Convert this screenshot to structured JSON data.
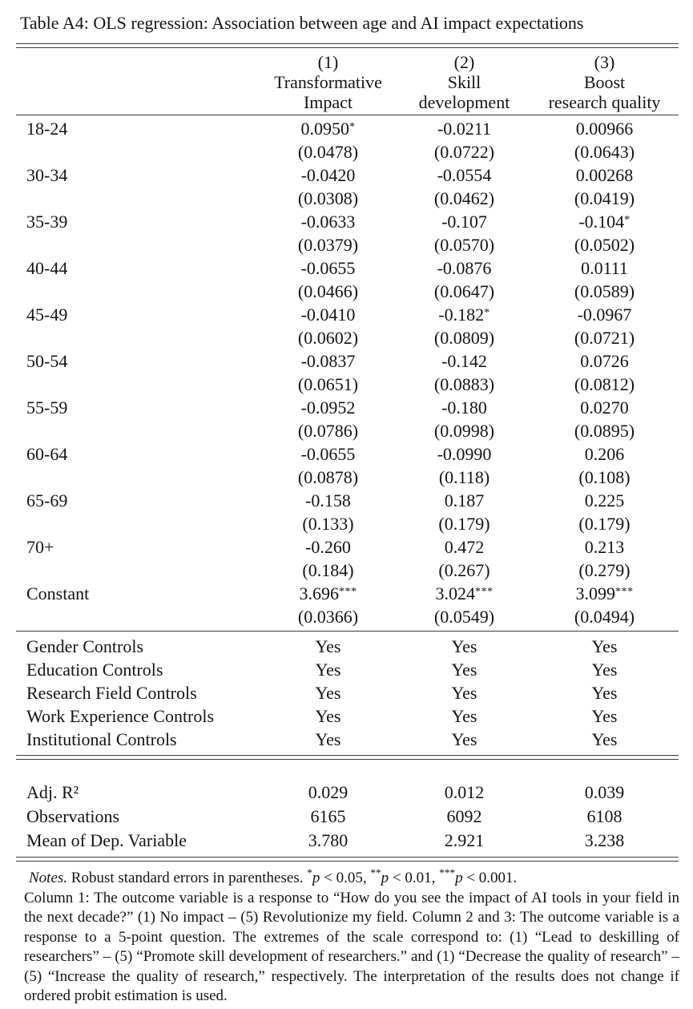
{
  "title": "Table A4: OLS regression: Association between age and AI impact expectations",
  "table": {
    "header": {
      "columns": [
        {
          "number": "(1)",
          "line1": "Transformative",
          "line2": "Impact"
        },
        {
          "number": "(2)",
          "line1": "Skill",
          "line2": "development"
        },
        {
          "number": "(3)",
          "line1": "Boost",
          "line2": "research quality"
        }
      ]
    },
    "coefficient_rows": [
      {
        "label": "18-24",
        "estimates": [
          "0.0950*",
          "-0.0211",
          "0.00966"
        ],
        "std_errors": [
          "(0.0478)",
          "(0.0722)",
          "(0.0643)"
        ]
      },
      {
        "label": "30-34",
        "estimates": [
          "-0.0420",
          "-0.0554",
          "0.00268"
        ],
        "std_errors": [
          "(0.0308)",
          "(0.0462)",
          "(0.0419)"
        ]
      },
      {
        "label": "35-39",
        "estimates": [
          "-0.0633",
          "-0.107",
          "-0.104*"
        ],
        "std_errors": [
          "(0.0379)",
          "(0.0570)",
          "(0.0502)"
        ]
      },
      {
        "label": "40-44",
        "estimates": [
          "-0.0655",
          "-0.0876",
          "0.0111"
        ],
        "std_errors": [
          "(0.0466)",
          "(0.0647)",
          "(0.0589)"
        ]
      },
      {
        "label": "45-49",
        "estimates": [
          "-0.0410",
          "-0.182*",
          "-0.0967"
        ],
        "std_errors": [
          "(0.0602)",
          "(0.0809)",
          "(0.0721)"
        ]
      },
      {
        "label": "50-54",
        "estimates": [
          "-0.0837",
          "-0.142",
          "0.0726"
        ],
        "std_errors": [
          "(0.0651)",
          "(0.0883)",
          "(0.0812)"
        ]
      },
      {
        "label": "55-59",
        "estimates": [
          "-0.0952",
          "-0.180",
          "0.0270"
        ],
        "std_errors": [
          "(0.0786)",
          "(0.0998)",
          "(0.0895)"
        ]
      },
      {
        "label": "60-64",
        "estimates": [
          "-0.0655",
          "-0.0990",
          "0.206"
        ],
        "std_errors": [
          "(0.0878)",
          "(0.118)",
          "(0.108)"
        ]
      },
      {
        "label": "65-69",
        "estimates": [
          "-0.158",
          "0.187",
          "0.225"
        ],
        "std_errors": [
          "(0.133)",
          "(0.179)",
          "(0.179)"
        ]
      },
      {
        "label": "70+",
        "estimates": [
          "-0.260",
          "0.472",
          "0.213"
        ],
        "std_errors": [
          "(0.184)",
          "(0.267)",
          "(0.279)"
        ]
      },
      {
        "label": "Constant",
        "estimates": [
          "3.696***",
          "3.024***",
          "3.099***"
        ],
        "std_errors": [
          "(0.0366)",
          "(0.0549)",
          "(0.0494)"
        ]
      }
    ],
    "control_rows": [
      {
        "label": "Gender Controls",
        "values": [
          "Yes",
          "Yes",
          "Yes"
        ]
      },
      {
        "label": "Education Controls",
        "values": [
          "Yes",
          "Yes",
          "Yes"
        ]
      },
      {
        "label": "Research Field Controls",
        "values": [
          "Yes",
          "Yes",
          "Yes"
        ]
      },
      {
        "label": "Work Experience Controls",
        "values": [
          "Yes",
          "Yes",
          "Yes"
        ]
      },
      {
        "label": "Institutional Controls",
        "values": [
          "Yes",
          "Yes",
          "Yes"
        ]
      }
    ],
    "stat_rows": [
      {
        "label": "Adj. R²",
        "values": [
          "0.029",
          "0.012",
          "0.039"
        ]
      },
      {
        "label": "Observations",
        "values": [
          "6165",
          "6092",
          "6108"
        ]
      },
      {
        "label": "Mean of Dep. Variable",
        "values": [
          "3.780",
          "2.921",
          "3.238"
        ]
      }
    ]
  },
  "notes": {
    "label": "Notes.",
    "line1_rest": " Robust standard errors in parentheses. ",
    "sig": [
      {
        "stars": "*",
        "var": "p",
        "cmp": " < 0.05, "
      },
      {
        "stars": "**",
        "var": "p",
        "cmp": " < 0.01, "
      },
      {
        "stars": "***",
        "var": "p",
        "cmp": " < 0.001."
      }
    ],
    "body": "Column 1: The outcome variable is a response to “How do you see the impact of AI tools in your field in the next decade?” (1) No impact – (5) Revolutionize my field. Column 2 and 3: The outcome variable is a response to a 5-point question. The extremes of the scale correspond to: (1) “Lead to deskilling of researchers” – (5) “Promote skill development of researchers.” and (1) “Decrease the quality of research” – (5) “Increase the quality of research,” respectively. The interpretation of the results does not change if ordered probit estimation is used."
  }
}
